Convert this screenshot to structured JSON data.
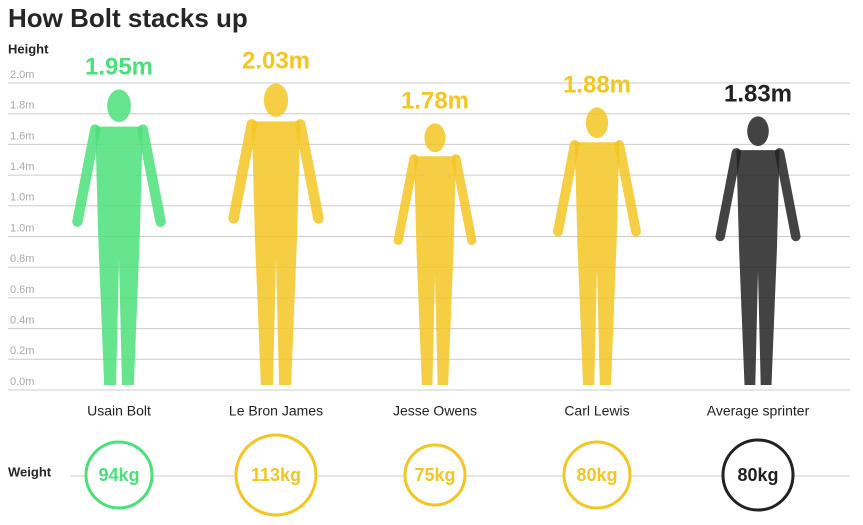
{
  "header": {
    "title": "How Bolt stacks up"
  },
  "height_axis": {
    "label": "Height",
    "ticks": [
      "2.0m",
      "1.8m",
      "1.6m",
      "1.4m",
      "1.0m",
      "1.0m",
      "0.8m",
      "0.6m",
      "0.4m",
      "0.2m",
      "0.0m"
    ]
  },
  "weight_label": "Weight",
  "athletes": [
    {
      "name": "Usain Bolt",
      "height": "1.95m",
      "weight": "94kg",
      "color": "#4be07a"
    },
    {
      "name": "Le Bron James",
      "height": "2.03m",
      "weight": "113kg",
      "color": "#f3c623"
    },
    {
      "name": "Jesse Owens",
      "height": "1.78m",
      "weight": "75kg",
      "color": "#f3c623"
    },
    {
      "name": "Carl Lewis",
      "height": "1.88m",
      "weight": "80kg",
      "color": "#f3c623"
    },
    {
      "name": "Average sprinter",
      "height": "1.83m",
      "weight": "80kg",
      "color": "#222222"
    }
  ]
}
